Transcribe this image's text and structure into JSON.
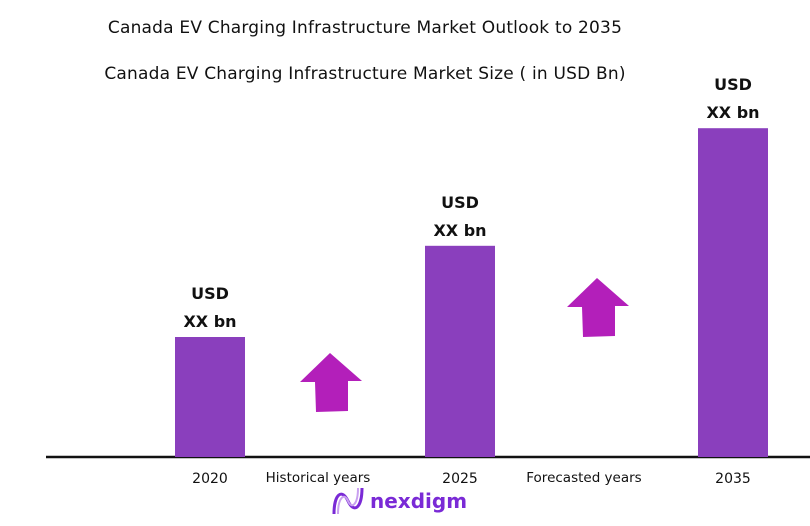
{
  "titles": {
    "main": "Canada EV Charging Infrastructure Market Outlook to 2035",
    "sub": "Canada EV Charging Infrastructure Market Size ( in USD Bn)"
  },
  "chart_data": {
    "type": "bar",
    "categories": [
      "2020",
      "2025",
      "2035"
    ],
    "relative_values_estimated": [
      1,
      1.76,
      2.74
    ],
    "data_labels": [
      [
        "USD",
        "XX bn"
      ],
      [
        "USD",
        "XX bn"
      ],
      [
        "USD",
        "XX bn"
      ]
    ],
    "period_labels": [
      "Historical years",
      "Forecasted years"
    ],
    "bar_color": "#8a3fbd",
    "arrow_color": "#b31fba",
    "grid": false,
    "axes_visible": "x baseline only"
  },
  "logo": {
    "text": "nexdigm",
    "color": "#7a2ad6"
  }
}
